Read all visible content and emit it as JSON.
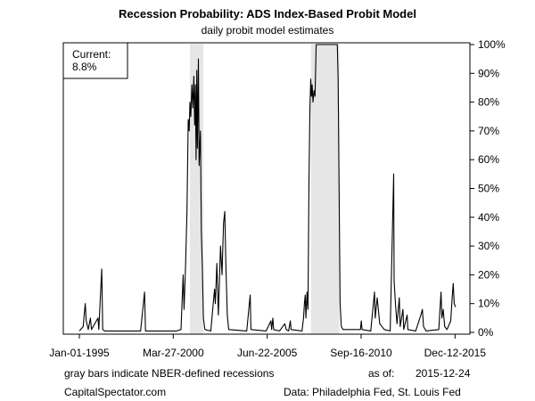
{
  "chart_data": {
    "type": "line",
    "title": "Recession Probability: ADS Index-Based Probit Model",
    "subtitle": "daily probit model estimates",
    "xlabel": "",
    "ylabel": "",
    "x_range": [
      "1995-01-01",
      "2015-12-24"
    ],
    "x_ticks": [
      "Jan-01-1995",
      "Mar-27-2000",
      "Jun-22-2005",
      "Sep-16-2010",
      "Dec-12-2015"
    ],
    "ylim": [
      0,
      100
    ],
    "y_ticks": [
      "0%",
      "10%",
      "20%",
      "30%",
      "40%",
      "50%",
      "60%",
      "70%",
      "80%",
      "90%",
      "100%"
    ],
    "y_axis_side": "right",
    "grid": false,
    "recession_bars": [
      {
        "start": "2001-03-01",
        "end": "2001-11-30"
      },
      {
        "start": "2007-12-01",
        "end": "2009-06-30"
      }
    ],
    "current_label": "Current:",
    "current_value": "8.8%",
    "series": [
      {
        "points": [
          [
            "1995-01-01",
            0.5
          ],
          [
            "1995-03-20",
            2
          ],
          [
            "1995-04-15",
            7
          ],
          [
            "1995-05-01",
            10
          ],
          [
            "1995-05-20",
            4
          ],
          [
            "1995-07-01",
            1
          ],
          [
            "1995-08-15",
            5
          ],
          [
            "1995-09-05",
            1
          ],
          [
            "1996-01-15",
            5
          ],
          [
            "1996-02-01",
            1
          ],
          [
            "1996-04-01",
            22
          ],
          [
            "1996-04-20",
            1
          ],
          [
            "1996-06-01",
            0.5
          ],
          [
            "1998-06-01",
            0.5
          ],
          [
            "1998-08-20",
            14
          ],
          [
            "1998-09-10",
            0.5
          ],
          [
            "2000-06-01",
            0.5
          ],
          [
            "2000-09-01",
            1
          ],
          [
            "2000-10-15",
            20
          ],
          [
            "2000-11-01",
            8
          ],
          [
            "2000-12-01",
            22
          ],
          [
            "2001-01-01",
            42
          ],
          [
            "2001-01-25",
            74
          ],
          [
            "2001-02-15",
            70
          ],
          [
            "2001-03-01",
            80
          ],
          [
            "2001-03-20",
            75
          ],
          [
            "2001-04-10",
            86
          ],
          [
            "2001-05-01",
            78
          ],
          [
            "2001-05-20",
            89
          ],
          [
            "2001-06-05",
            72
          ],
          [
            "2001-06-20",
            86
          ],
          [
            "2001-07-05",
            60
          ],
          [
            "2001-07-20",
            91
          ],
          [
            "2001-08-01",
            64
          ],
          [
            "2001-08-20",
            95
          ],
          [
            "2001-09-05",
            58
          ],
          [
            "2001-10-01",
            70
          ],
          [
            "2001-10-20",
            35
          ],
          [
            "2001-11-10",
            22
          ],
          [
            "2001-12-01",
            5
          ],
          [
            "2002-01-01",
            1
          ],
          [
            "2002-05-01",
            0.5
          ],
          [
            "2002-07-15",
            15
          ],
          [
            "2002-08-01",
            10
          ],
          [
            "2002-09-01",
            24
          ],
          [
            "2002-10-01",
            6
          ],
          [
            "2002-11-15",
            30
          ],
          [
            "2002-12-15",
            20
          ],
          [
            "2003-01-15",
            38
          ],
          [
            "2003-02-10",
            42
          ],
          [
            "2003-03-01",
            25
          ],
          [
            "2003-04-01",
            6
          ],
          [
            "2003-05-01",
            1
          ],
          [
            "2004-05-01",
            0.5
          ],
          [
            "2004-07-10",
            13
          ],
          [
            "2004-07-25",
            1
          ],
          [
            "2005-06-01",
            0.5
          ],
          [
            "2005-09-05",
            4
          ],
          [
            "2005-09-20",
            1
          ],
          [
            "2005-10-15",
            5
          ],
          [
            "2005-11-01",
            1
          ],
          [
            "2006-03-01",
            0.5
          ],
          [
            "2006-06-15",
            3
          ],
          [
            "2006-07-15",
            1
          ],
          [
            "2006-09-01",
            0.5
          ],
          [
            "2006-10-05",
            4
          ],
          [
            "2006-10-20",
            1
          ],
          [
            "2007-06-01",
            0.5
          ],
          [
            "2007-07-01",
            5
          ],
          [
            "2007-07-20",
            10
          ],
          [
            "2007-08-05",
            13
          ],
          [
            "2007-08-20",
            5
          ],
          [
            "2007-09-10",
            14
          ],
          [
            "2007-10-01",
            8
          ],
          [
            "2007-10-20",
            52
          ],
          [
            "2007-11-10",
            78
          ],
          [
            "2007-11-25",
            88
          ],
          [
            "2007-12-10",
            82
          ],
          [
            "2007-12-25",
            86
          ],
          [
            "2008-01-10",
            80
          ],
          [
            "2008-02-01",
            84
          ],
          [
            "2008-02-20",
            82
          ],
          [
            "2008-03-15",
            100
          ],
          [
            "2008-10-01",
            100
          ],
          [
            "2009-05-20",
            100
          ],
          [
            "2009-06-05",
            88
          ],
          [
            "2009-06-25",
            50
          ],
          [
            "2009-07-15",
            10
          ],
          [
            "2009-08-10",
            2
          ],
          [
            "2009-09-15",
            1
          ],
          [
            "2010-09-01",
            1
          ],
          [
            "2010-09-20",
            4
          ],
          [
            "2010-10-05",
            1
          ],
          [
            "2011-04-01",
            0.5
          ],
          [
            "2011-06-15",
            14
          ],
          [
            "2011-07-01",
            5
          ],
          [
            "2011-08-10",
            12
          ],
          [
            "2011-09-01",
            8
          ],
          [
            "2011-10-01",
            3
          ],
          [
            "2012-01-01",
            1
          ],
          [
            "2012-05-01",
            0.5
          ],
          [
            "2012-07-10",
            55
          ],
          [
            "2012-07-20",
            18
          ],
          [
            "2012-08-15",
            10
          ],
          [
            "2012-09-15",
            3
          ],
          [
            "2012-11-01",
            12
          ],
          [
            "2012-11-20",
            2
          ],
          [
            "2013-01-15",
            8
          ],
          [
            "2013-02-01",
            1
          ],
          [
            "2013-04-10",
            6
          ],
          [
            "2013-04-25",
            1
          ],
          [
            "2013-10-01",
            0.5
          ],
          [
            "2014-01-15",
            6
          ],
          [
            "2014-02-15",
            8
          ],
          [
            "2014-03-10",
            2
          ],
          [
            "2014-05-01",
            0.5
          ],
          [
            "2015-01-15",
            1
          ],
          [
            "2015-03-01",
            14
          ],
          [
            "2015-03-20",
            5
          ],
          [
            "2015-04-15",
            8
          ],
          [
            "2015-05-15",
            2
          ],
          [
            "2015-07-01",
            1
          ],
          [
            "2015-09-15",
            4
          ],
          [
            "2015-10-15",
            12
          ],
          [
            "2015-11-05",
            17
          ],
          [
            "2015-11-25",
            10
          ],
          [
            "2015-12-24",
            8.8
          ]
        ]
      }
    ]
  },
  "footer": {
    "note": "gray bars indicate NBER-defined recessions",
    "asof_label": "as of:",
    "asof_date": "2015-12-24",
    "source_site": "CapitalSpectator.com",
    "data_source": "Data: Philadelphia Fed, St. Louis Fed"
  },
  "colors": {
    "line": "#000000",
    "recession_fill": "#e6e6e6",
    "background": "#ffffff"
  }
}
